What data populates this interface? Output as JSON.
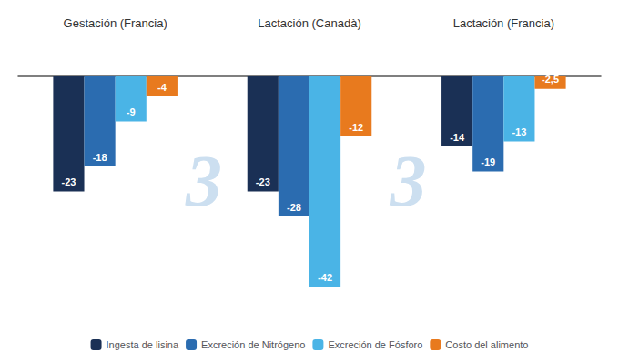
{
  "chart_data": {
    "type": "bar",
    "categories": [
      "Gestación (Francia)",
      "Lactación (Canadà)",
      "Lactación (Francia)"
    ],
    "series": [
      {
        "name": "Ingesta de lisina",
        "color": "#1a3055",
        "values": [
          -23,
          -23,
          -14
        ]
      },
      {
        "name": "Excreción de Nitrógeno",
        "color": "#2b6cb0",
        "values": [
          -18,
          -28,
          -19
        ]
      },
      {
        "name": "Excreción de Fósforo",
        "color": "#4ab4e6",
        "values": [
          -9,
          -42,
          -13
        ]
      },
      {
        "name": "Costo del alimento",
        "color": "#e87a1e",
        "values": [
          -4,
          -12,
          -2.5
        ],
        "value_labels": [
          "-4",
          "-12",
          "-2,5"
        ]
      }
    ],
    "ylim": [
      -48,
      8
    ],
    "tick_labels": "x",
    "grid": false,
    "legend": "bottom",
    "data_labels": true,
    "annotations": [
      "3",
      "3"
    ]
  }
}
